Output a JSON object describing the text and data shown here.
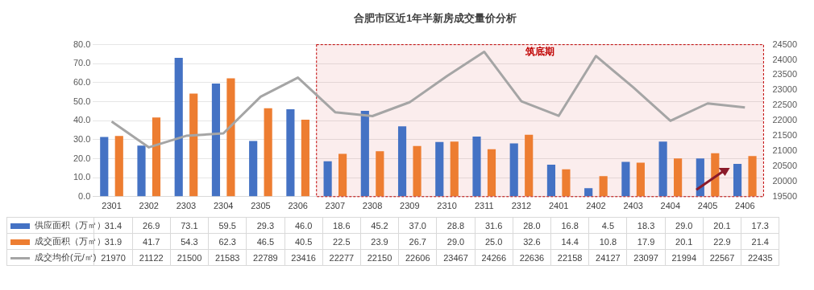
{
  "chart_data": {
    "type": "bar",
    "title": "合肥市区近1年半新房成交量价分析",
    "categories": [
      "2301",
      "2302",
      "2303",
      "2304",
      "2305",
      "2306",
      "2307",
      "2308",
      "2309",
      "2310",
      "2311",
      "2312",
      "2401",
      "2402",
      "2403",
      "2404",
      "2405",
      "2406"
    ],
    "series": [
      {
        "name": "供应面积（万㎡）",
        "color": "#4472c4",
        "values": [
          31.4,
          26.9,
          73.1,
          59.5,
          29.3,
          46.0,
          18.6,
          45.2,
          37.0,
          28.8,
          31.6,
          28.0,
          16.8,
          4.5,
          18.3,
          29.0,
          20.1,
          17.3
        ],
        "value_labels": [
          "31.4",
          "26.9",
          "73.1",
          "59.5",
          "29.3",
          "46.0",
          "18.6",
          "45.2",
          "37.0",
          "28.8",
          "31.6",
          "28.0",
          "16.8",
          "4.5",
          "18.3",
          "29.0",
          "20.1",
          "17.3"
        ]
      },
      {
        "name": "成交面积（万㎡）",
        "color": "#ed7d31",
        "values": [
          31.9,
          41.7,
          54.3,
          62.3,
          46.5,
          40.5,
          22.5,
          23.9,
          26.7,
          29.0,
          25.0,
          32.6,
          14.4,
          10.8,
          17.9,
          20.1,
          22.9,
          21.4
        ],
        "value_labels": [
          "31.9",
          "41.7",
          "54.3",
          "62.3",
          "46.5",
          "40.5",
          "22.5",
          "23.9",
          "26.7",
          "29.0",
          "25.0",
          "32.6",
          "14.4",
          "10.8",
          "17.9",
          "20.1",
          "22.9",
          "21.4"
        ]
      },
      {
        "name": "成交均价(元/㎡)",
        "type": "line",
        "axis": "y2",
        "color": "#a5a5a5",
        "values": [
          21970,
          21122,
          21500,
          21583,
          22789,
          23416,
          22277,
          22150,
          22606,
          23467,
          24266,
          22636,
          22158,
          24127,
          23097,
          21994,
          22567,
          22435
        ],
        "value_labels": [
          "21970",
          "21122",
          "21500",
          "21583",
          "22789",
          "23416",
          "22277",
          "22150",
          "22606",
          "23467",
          "24266",
          "22636",
          "22158",
          "24127",
          "23097",
          "21994",
          "22567",
          "22435"
        ]
      }
    ],
    "ylim": [
      0,
      80
    ],
    "yticks": [
      {
        "value": 0,
        "label": "0.0"
      },
      {
        "value": 10,
        "label": "10.0"
      },
      {
        "value": 20,
        "label": "20.0"
      },
      {
        "value": 30,
        "label": "30.0"
      },
      {
        "value": 40,
        "label": "40.0"
      },
      {
        "value": 50,
        "label": "50.0"
      },
      {
        "value": 60,
        "label": "60.0"
      },
      {
        "value": 70,
        "label": "70.0"
      },
      {
        "value": 80,
        "label": "80.0"
      }
    ],
    "y2lim": [
      19500,
      24500
    ],
    "y2ticks": [
      19500,
      20000,
      20500,
      21000,
      21500,
      22000,
      22500,
      23000,
      23500,
      24000,
      24500
    ],
    "bands": [
      {
        "axis": "x",
        "from": "2307",
        "to": "2406",
        "label": "筑底期",
        "color": "#c00000"
      }
    ],
    "grid": "y",
    "legend": "bottom",
    "marker": "none"
  }
}
